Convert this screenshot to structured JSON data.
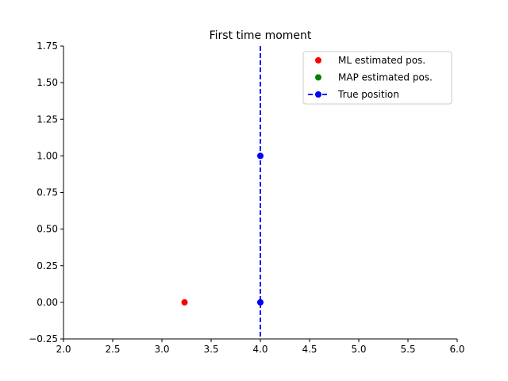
{
  "chart_data": {
    "type": "scatter",
    "title": "First time moment",
    "xlabel": "",
    "ylabel": "",
    "xlim": [
      2.0,
      6.0
    ],
    "ylim": [
      -0.25,
      1.75
    ],
    "xticks": [
      "2.0",
      "2.5",
      "3.0",
      "3.5",
      "4.0",
      "4.5",
      "5.0",
      "5.5",
      "6.0"
    ],
    "yticks": [
      "−0.25",
      "0.00",
      "0.25",
      "0.50",
      "0.75",
      "1.00",
      "1.25",
      "1.50",
      "1.75"
    ],
    "grid": false,
    "legend_position": "top-right",
    "series": [
      {
        "name": "ML estimated pos.",
        "color": "#ff0000",
        "style": "markers",
        "points": [
          [
            3.23,
            0.0
          ]
        ]
      },
      {
        "name": "MAP estimated pos.",
        "color": "#008000",
        "style": "markers",
        "points": []
      },
      {
        "name": "True position",
        "color": "#0000ff",
        "style": "dashed-line-markers",
        "points": [
          [
            4.0,
            0.0
          ],
          [
            4.0,
            1.0
          ]
        ],
        "vertical_line_x": 4.0
      }
    ]
  }
}
